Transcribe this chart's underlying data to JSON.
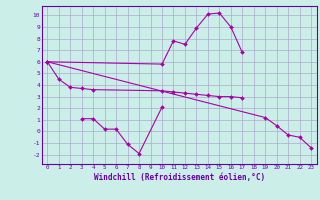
{
  "xlabel": "Windchill (Refroidissement éolien,°C)",
  "background_color": "#cceee8",
  "grid_color": "#aaaacc",
  "line_color": "#aa00aa",
  "spine_color": "#6600aa",
  "tick_color": "#6600aa",
  "x_ticks": [
    0,
    1,
    2,
    3,
    4,
    5,
    6,
    7,
    8,
    9,
    10,
    11,
    12,
    13,
    14,
    15,
    16,
    17,
    18,
    19,
    20,
    21,
    22,
    23
  ],
  "y_ticks": [
    -2,
    -1,
    0,
    1,
    2,
    3,
    4,
    5,
    6,
    7,
    8,
    9,
    10
  ],
  "ylim": [
    -2.8,
    10.8
  ],
  "xlim": [
    -0.5,
    23.5
  ],
  "s1_x": [
    0,
    1,
    2,
    3,
    4,
    10,
    11,
    12,
    13,
    14,
    15,
    16,
    17
  ],
  "s1_y": [
    6.0,
    4.5,
    3.8,
    3.7,
    3.6,
    3.5,
    3.4,
    3.3,
    3.2,
    3.1,
    3.0,
    3.0,
    2.9
  ],
  "s2_x": [
    0,
    10,
    11,
    12,
    13,
    14,
    15,
    16,
    17
  ],
  "s2_y": [
    6.0,
    5.8,
    7.8,
    7.5,
    8.9,
    10.1,
    10.2,
    9.0,
    6.8
  ],
  "s3_x": [
    3,
    4,
    5,
    6,
    7,
    8,
    10
  ],
  "s3_y": [
    1.1,
    1.1,
    0.2,
    0.2,
    -1.1,
    -1.9,
    2.1
  ],
  "s4_x": [
    0,
    19,
    20,
    21,
    22,
    23
  ],
  "s4_y": [
    6.0,
    1.2,
    0.5,
    -0.3,
    -0.5,
    -1.4
  ]
}
